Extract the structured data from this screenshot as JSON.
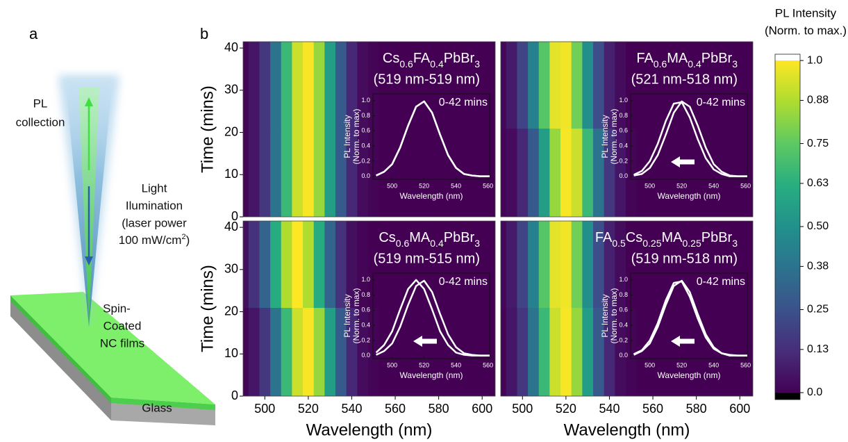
{
  "panel_a": {
    "label": "a",
    "pl_collection": [
      "PL",
      "collection"
    ],
    "illumination": [
      "Light",
      "Ilumination",
      "(laser power"
    ],
    "power_line": {
      "text": "100 mW/cm",
      "sup": "2",
      "end": ")"
    },
    "film": [
      "Spin-",
      "Coated",
      "NC films"
    ],
    "glass": "Glass"
  },
  "panel_b_label": "b",
  "chart_data": [
    {
      "type": "heatmap",
      "formula": [
        "Cs",
        "0.6",
        "FA",
        "0.4",
        "PbBr",
        "3"
      ],
      "subtitle": "(519 nm-519 nm)",
      "x": [
        490,
        495,
        500,
        505,
        510,
        515,
        520,
        525,
        530,
        535,
        540,
        545,
        550,
        555,
        560,
        565,
        570,
        575,
        580,
        585,
        590,
        595,
        600,
        605
      ],
      "y": [
        0,
        42
      ],
      "z": [
        [
          0.01,
          0.06,
          0.16,
          0.38,
          0.67,
          0.92,
          0.99,
          0.84,
          0.55,
          0.28,
          0.11,
          0.03,
          0.01,
          0,
          0,
          0,
          0,
          0,
          0,
          0,
          0,
          0,
          0,
          0
        ],
        [
          0.01,
          0.06,
          0.16,
          0.38,
          0.67,
          0.92,
          0.99,
          0.84,
          0.55,
          0.28,
          0.11,
          0.03,
          0.01,
          0,
          0,
          0,
          0,
          0,
          0,
          0,
          0,
          0,
          0,
          0
        ]
      ],
      "xlim": [
        490,
        606
      ],
      "ylim": [
        0,
        41.5
      ],
      "yticks": [
        0,
        10,
        20,
        30,
        40
      ],
      "ylabel": "Time (mins)",
      "inset": {
        "type": "line",
        "color": "#ffffff",
        "xlim": [
          488,
          561
        ],
        "ylim": [
          -0.04,
          1.09
        ],
        "xticks": [
          500,
          520,
          540,
          560
        ],
        "yticks": [
          {
            "value": 0,
            "label": "0.0"
          },
          0.2,
          0.4,
          0.6,
          0.8,
          {
            "value": 1,
            "label": "1.0"
          }
        ],
        "xlabel": "Wavelength (nm)",
        "ylabel": [
          "PL Intensity",
          "(Norm. to max)"
        ],
        "annotation": "0-42 mins",
        "shift_arrow": false
      }
    },
    {
      "type": "heatmap",
      "formula": [
        "FA",
        "0.6",
        "MA",
        "0.4",
        "PbBr",
        "3"
      ],
      "subtitle": "(521 nm-518 nm)",
      "x": [
        490,
        495,
        500,
        505,
        510,
        515,
        520,
        525,
        530,
        535,
        540,
        545,
        550,
        555,
        560,
        565,
        570,
        575,
        580,
        585,
        590,
        595,
        600,
        605
      ],
      "y": [
        0,
        42
      ],
      "z": [
        [
          0.01,
          0.03,
          0.11,
          0.28,
          0.55,
          0.84,
          0.99,
          0.92,
          0.67,
          0.38,
          0.16,
          0.06,
          0.01,
          0,
          0,
          0,
          0,
          0,
          0,
          0,
          0,
          0,
          0,
          0
        ],
        [
          0.02,
          0.07,
          0.2,
          0.43,
          0.73,
          0.96,
          0.98,
          0.78,
          0.49,
          0.24,
          0.09,
          0.03,
          0,
          0,
          0,
          0,
          0,
          0,
          0,
          0,
          0,
          0,
          0,
          0
        ]
      ],
      "xlim": [
        490,
        606
      ],
      "ylim": [
        0,
        41.5
      ],
      "inset": {
        "type": "line",
        "color": "#ffffff",
        "xlim": [
          488,
          561
        ],
        "ylim": [
          -0.04,
          1.09
        ],
        "xticks": [
          500,
          520,
          540,
          560
        ],
        "yticks": [
          {
            "value": 0,
            "label": "0.0"
          },
          0.2,
          0.4,
          0.6,
          0.8,
          {
            "value": 1,
            "label": "1.0"
          }
        ],
        "xlabel": "Wavelength (nm)",
        "ylabel": [
          "PL Intensity",
          "(Norm. to max)"
        ],
        "annotation": "0-42 mins",
        "shift_arrow": true
      }
    },
    {
      "type": "heatmap",
      "formula": [
        "Cs",
        "0.6",
        "MA",
        "0.4",
        "PbBr",
        "3"
      ],
      "subtitle": "(519 nm-515 nm)",
      "x": [
        490,
        495,
        500,
        505,
        510,
        515,
        520,
        525,
        530,
        535,
        540,
        545,
        550,
        555,
        560,
        565,
        570,
        575,
        580,
        585,
        590,
        595,
        600,
        605
      ],
      "y": [
        0,
        42
      ],
      "z": [
        [
          0.01,
          0.06,
          0.16,
          0.38,
          0.67,
          0.92,
          0.99,
          0.84,
          0.55,
          0.28,
          0.11,
          0.03,
          0.01,
          0,
          0,
          0,
          0,
          0,
          0,
          0,
          0,
          0,
          0,
          0
        ],
        [
          0.04,
          0.14,
          0.32,
          0.61,
          0.88,
          1,
          0.88,
          0.61,
          0.32,
          0.14,
          0.04,
          0.01,
          0,
          0,
          0,
          0,
          0,
          0,
          0,
          0,
          0,
          0,
          0,
          0
        ]
      ],
      "xlim": [
        490,
        606
      ],
      "ylim": [
        0,
        41.5
      ],
      "xticks": [
        500,
        520,
        540,
        560,
        580,
        600
      ],
      "yticks": [
        0,
        10,
        20,
        30,
        40
      ],
      "xlabel": "Wavelength (nm)",
      "ylabel": "Time (mins)",
      "inset": {
        "type": "line",
        "color": "#ffffff",
        "xlim": [
          488,
          561
        ],
        "ylim": [
          -0.04,
          1.09
        ],
        "xticks": [
          500,
          520,
          540,
          560
        ],
        "yticks": [
          {
            "value": 0,
            "label": "0.0"
          },
          0.2,
          0.4,
          0.6,
          0.8,
          {
            "value": 1,
            "label": "1.0"
          }
        ],
        "xlabel": "Wavelength (nm)",
        "ylabel": [
          "PL Intensity",
          "(Norm. to max)"
        ],
        "annotation": "0-42 mins",
        "shift_arrow": true
      }
    },
    {
      "type": "heatmap",
      "formula": [
        "FA",
        "0.5",
        "Cs",
        "0.25",
        "MA",
        "0.25",
        "PbBr",
        "3"
      ],
      "subtitle": "(519 nm-518 nm)",
      "x": [
        490,
        495,
        500,
        505,
        510,
        515,
        520,
        525,
        530,
        535,
        540,
        545,
        550,
        555,
        560,
        565,
        570,
        575,
        580,
        585,
        590,
        595,
        600,
        605
      ],
      "y": [
        0,
        42
      ],
      "z": [
        [
          0.01,
          0.06,
          0.16,
          0.38,
          0.67,
          0.92,
          0.99,
          0.84,
          0.55,
          0.28,
          0.11,
          0.03,
          0.01,
          0,
          0,
          0,
          0,
          0,
          0,
          0,
          0,
          0,
          0,
          0
        ],
        [
          0.02,
          0.07,
          0.2,
          0.43,
          0.73,
          0.96,
          0.98,
          0.78,
          0.49,
          0.24,
          0.09,
          0.03,
          0,
          0,
          0,
          0,
          0,
          0,
          0,
          0,
          0,
          0,
          0,
          0
        ]
      ],
      "xlim": [
        490,
        606
      ],
      "ylim": [
        0,
        41.5
      ],
      "xticks": [
        500,
        520,
        540,
        560,
        580,
        600
      ],
      "xlabel": "Wavelength (nm)",
      "inset": {
        "type": "line",
        "color": "#ffffff",
        "xlim": [
          488,
          561
        ],
        "ylim": [
          -0.04,
          1.09
        ],
        "xticks": [
          500,
          520,
          540,
          560
        ],
        "yticks": [
          {
            "value": 0,
            "label": "0.0"
          },
          0.2,
          0.4,
          0.6,
          0.8,
          {
            "value": 1,
            "label": "1.0"
          }
        ],
        "xlabel": "Wavelength (nm)",
        "ylabel": [
          "PL Intensity",
          "(Norm. to max)"
        ],
        "annotation": "0-42 mins",
        "shift_arrow": true
      }
    },
    {
      "type": "colorbar",
      "title": [
        "PL Intensity",
        "(Norm. to max.)"
      ],
      "colormap": [
        "#440154",
        "#472d7b",
        "#3b528b",
        "#2c728e",
        "#21918c",
        "#28ae80",
        "#5ec962",
        "#addc30",
        "#fde725"
      ],
      "under_color": "#000000",
      "over_color": "#ffffff",
      "ylim": [
        -0.021,
        1.019
      ],
      "yticks": [
        {
          "value": 0,
          "label": "0.0"
        },
        0.13,
        0.25,
        0.38,
        {
          "value": 0.5,
          "label": "0.50"
        },
        0.63,
        0.75,
        0.88,
        {
          "value": 1,
          "label": "1.0"
        }
      ]
    }
  ]
}
